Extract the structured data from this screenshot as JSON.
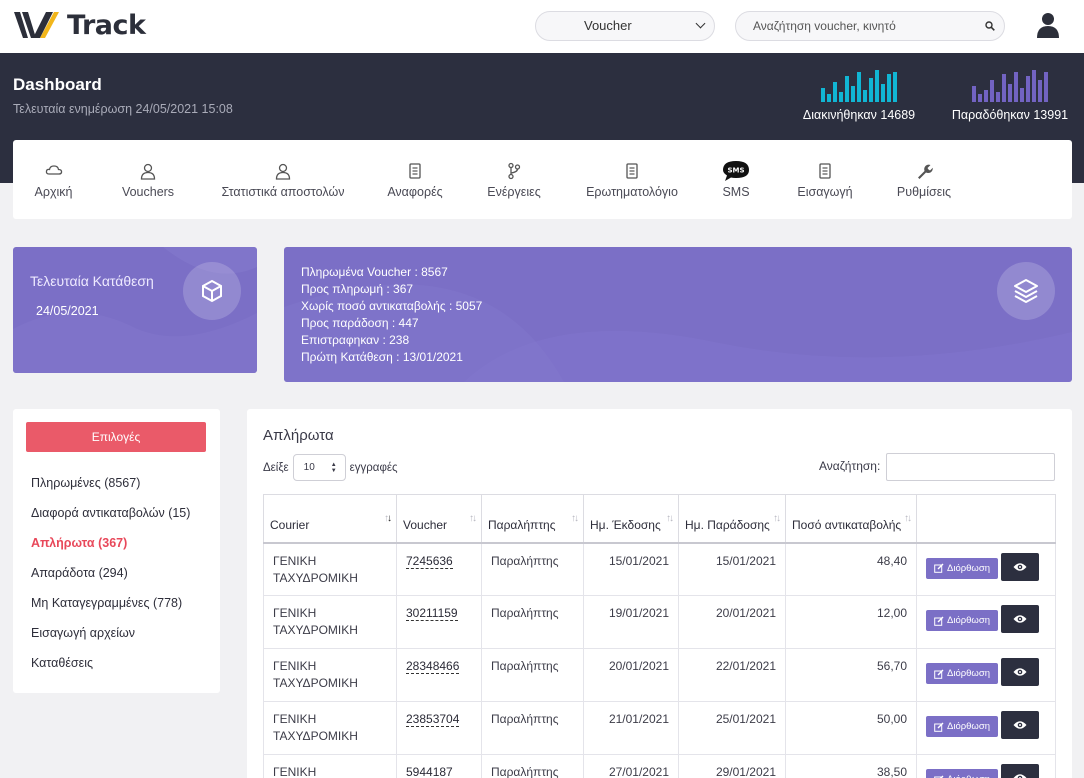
{
  "app": {
    "logo_text": "Track"
  },
  "topbar": {
    "voucher_select": "Voucher",
    "search_placeholder": "Αναζήτηση voucher, κινητό",
    "icons": [
      "search-icon",
      "user-icon"
    ]
  },
  "header": {
    "title": "Dashboard",
    "updated": "Τελευταία ενημέρωση 24/05/2021 15:08",
    "stat_moved": "Διακινήθηκαν 14689",
    "stat_delivered": "Παραδόθηκαν 13991",
    "colors": {
      "moved": "#11b5d3",
      "delivered": "#7263c2"
    }
  },
  "nav": [
    {
      "label": "Αρχική",
      "icon": "cloud-icon"
    },
    {
      "label": "Vouchers",
      "icon": "user-icon"
    },
    {
      "label": "Στατιστικά αποστολών",
      "icon": "user-icon"
    },
    {
      "label": "Αναφορές",
      "icon": "document-icon"
    },
    {
      "label": "Ενέργειες",
      "icon": "branch-icon"
    },
    {
      "label": "Ερωτηματολόγιο",
      "icon": "document-icon"
    },
    {
      "label": "SMS",
      "icon": "sms-icon"
    },
    {
      "label": "Εισαγωγή",
      "icon": "document-icon"
    },
    {
      "label": "Ρυθμίσεις",
      "icon": "wrench-icon"
    }
  ],
  "deposit_card": {
    "title": "Τελευταία Κατάθεση",
    "date": "24/05/2021",
    "icon": "box-icon"
  },
  "summary_card": {
    "lines": [
      "Πληρωμένα Voucher : 8567",
      "Προς πληρωμή : 367",
      "Χωρίς ποσό αντικαταβολής : 5057",
      "Προς παράδοση : 447",
      "Επιστραφηκαν : 238",
      "Πρώτη Κατάθεση : 13/01/2021"
    ],
    "icon": "layers-icon",
    "color": "#7b6fc6"
  },
  "options": {
    "button": "Επιλογές",
    "items": [
      {
        "label": "Πληρωμένες",
        "count": "(8567)"
      },
      {
        "label": "Διαφορά αντικαταβολών",
        "count": "(15)"
      },
      {
        "label": "Απλήρωτα",
        "count": "(367)"
      },
      {
        "label": "Απαράδοτα",
        "count": "(294)"
      },
      {
        "label": "Μη Καταγεγραμμένες",
        "count": "(778)"
      },
      {
        "label": "Εισαγωγή αρχείων",
        "count": ""
      },
      {
        "label": "Καταθέσεις",
        "count": ""
      }
    ],
    "active_color": "#e8485a"
  },
  "table_card": {
    "title": "Απλήρωτα",
    "show_prefix": "Δείξε",
    "page_size": "10",
    "show_suffix": "εγγραφές",
    "search_label": "Αναζήτηση:",
    "columns": [
      "Courier",
      "Voucher",
      "Παραλήπτης",
      "Ημ. Έκδοσης",
      "Ημ. Παράδοσης",
      "Ποσό αντικαταβολής",
      ""
    ],
    "edit_label": "Διόρθωση",
    "rows": [
      {
        "courier": "ΓΕΝΙΚΗ ΤΑΧΥΔΡΟΜΙΚΗ",
        "voucher": "7245636",
        "recipient": "Παραλήπτης",
        "issued": "15/01/2021",
        "delivered": "15/01/2021",
        "amount": "48,40"
      },
      {
        "courier": "ΓΕΝΙΚΗ ΤΑΧΥΔΡΟΜΙΚΗ",
        "voucher": "30211159",
        "recipient": "Παραλήπτης",
        "issued": "19/01/2021",
        "delivered": "20/01/2021",
        "amount": "12,00"
      },
      {
        "courier": "ΓΕΝΙΚΗ ΤΑΧΥΔΡΟΜΙΚΗ",
        "voucher": "28348466",
        "recipient": "Παραλήπτης",
        "issued": "20/01/2021",
        "delivered": "22/01/2021",
        "amount": "56,70"
      },
      {
        "courier": "ΓΕΝΙΚΗ ΤΑΧΥΔΡΟΜΙΚΗ",
        "voucher": "23853704",
        "recipient": "Παραλήπτης",
        "issued": "21/01/2021",
        "delivered": "25/01/2021",
        "amount": "50,00"
      },
      {
        "courier": "ΓΕΝΙΚΗ ΤΑΧΥΔΡΟΜΙΚΗ",
        "voucher": "5944187",
        "recipient": "Παραλήπτης",
        "issued": "27/01/2021",
        "delivered": "29/01/2021",
        "amount": "38,50"
      }
    ]
  }
}
